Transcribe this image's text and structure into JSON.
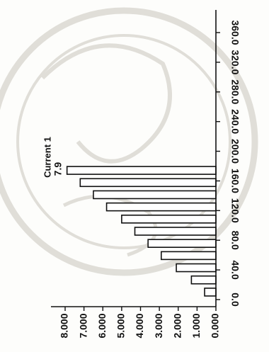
{
  "chart_data": {
    "type": "bar",
    "orientation": "rotated-90-clockwise",
    "series": [
      {
        "name": "Current 1",
        "values": [
          0.6,
          1.3,
          2.1,
          2.9,
          3.6,
          4.3,
          5.0,
          5.8,
          6.5,
          7.2,
          7.9
        ]
      }
    ],
    "x_ticks": [
      "0.0",
      "40.0",
      "80.0",
      "120.0",
      "160.0",
      "200.0",
      "240.0",
      "280.0",
      "320.0",
      "360.0"
    ],
    "y_ticks": [
      "8.000",
      "7.000",
      "6.000",
      "5.000",
      "4.000",
      "3.000",
      "2.000",
      "1.000",
      "0.000"
    ],
    "xlim": [
      0,
      360
    ],
    "ylim": [
      0,
      8
    ],
    "data_labels": [
      {
        "index": 10,
        "text": "7.9"
      }
    ],
    "legend": "Current 1",
    "grid": false
  }
}
